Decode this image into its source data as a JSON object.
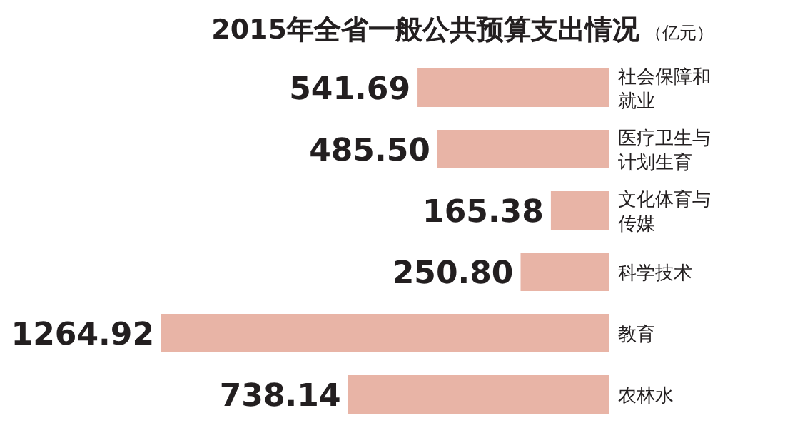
{
  "chart_data": {
    "type": "bar",
    "orientation": "horizontal",
    "title": "2015年全省一般公共预算支出情况",
    "subtitle": "（亿元）",
    "categories": [
      "社会保障和就业",
      "医疗卫生与计划生育",
      "文化体育与传媒",
      "科学技术",
      "教育",
      "农林水"
    ],
    "values": [
      541.69,
      485.5,
      165.38,
      250.8,
      1264.92,
      738.14
    ],
    "value_labels": [
      "541.69",
      "485.50",
      "165.38",
      "250.80",
      "1264.92",
      "738.14"
    ],
    "color": "#e8b4a6"
  }
}
